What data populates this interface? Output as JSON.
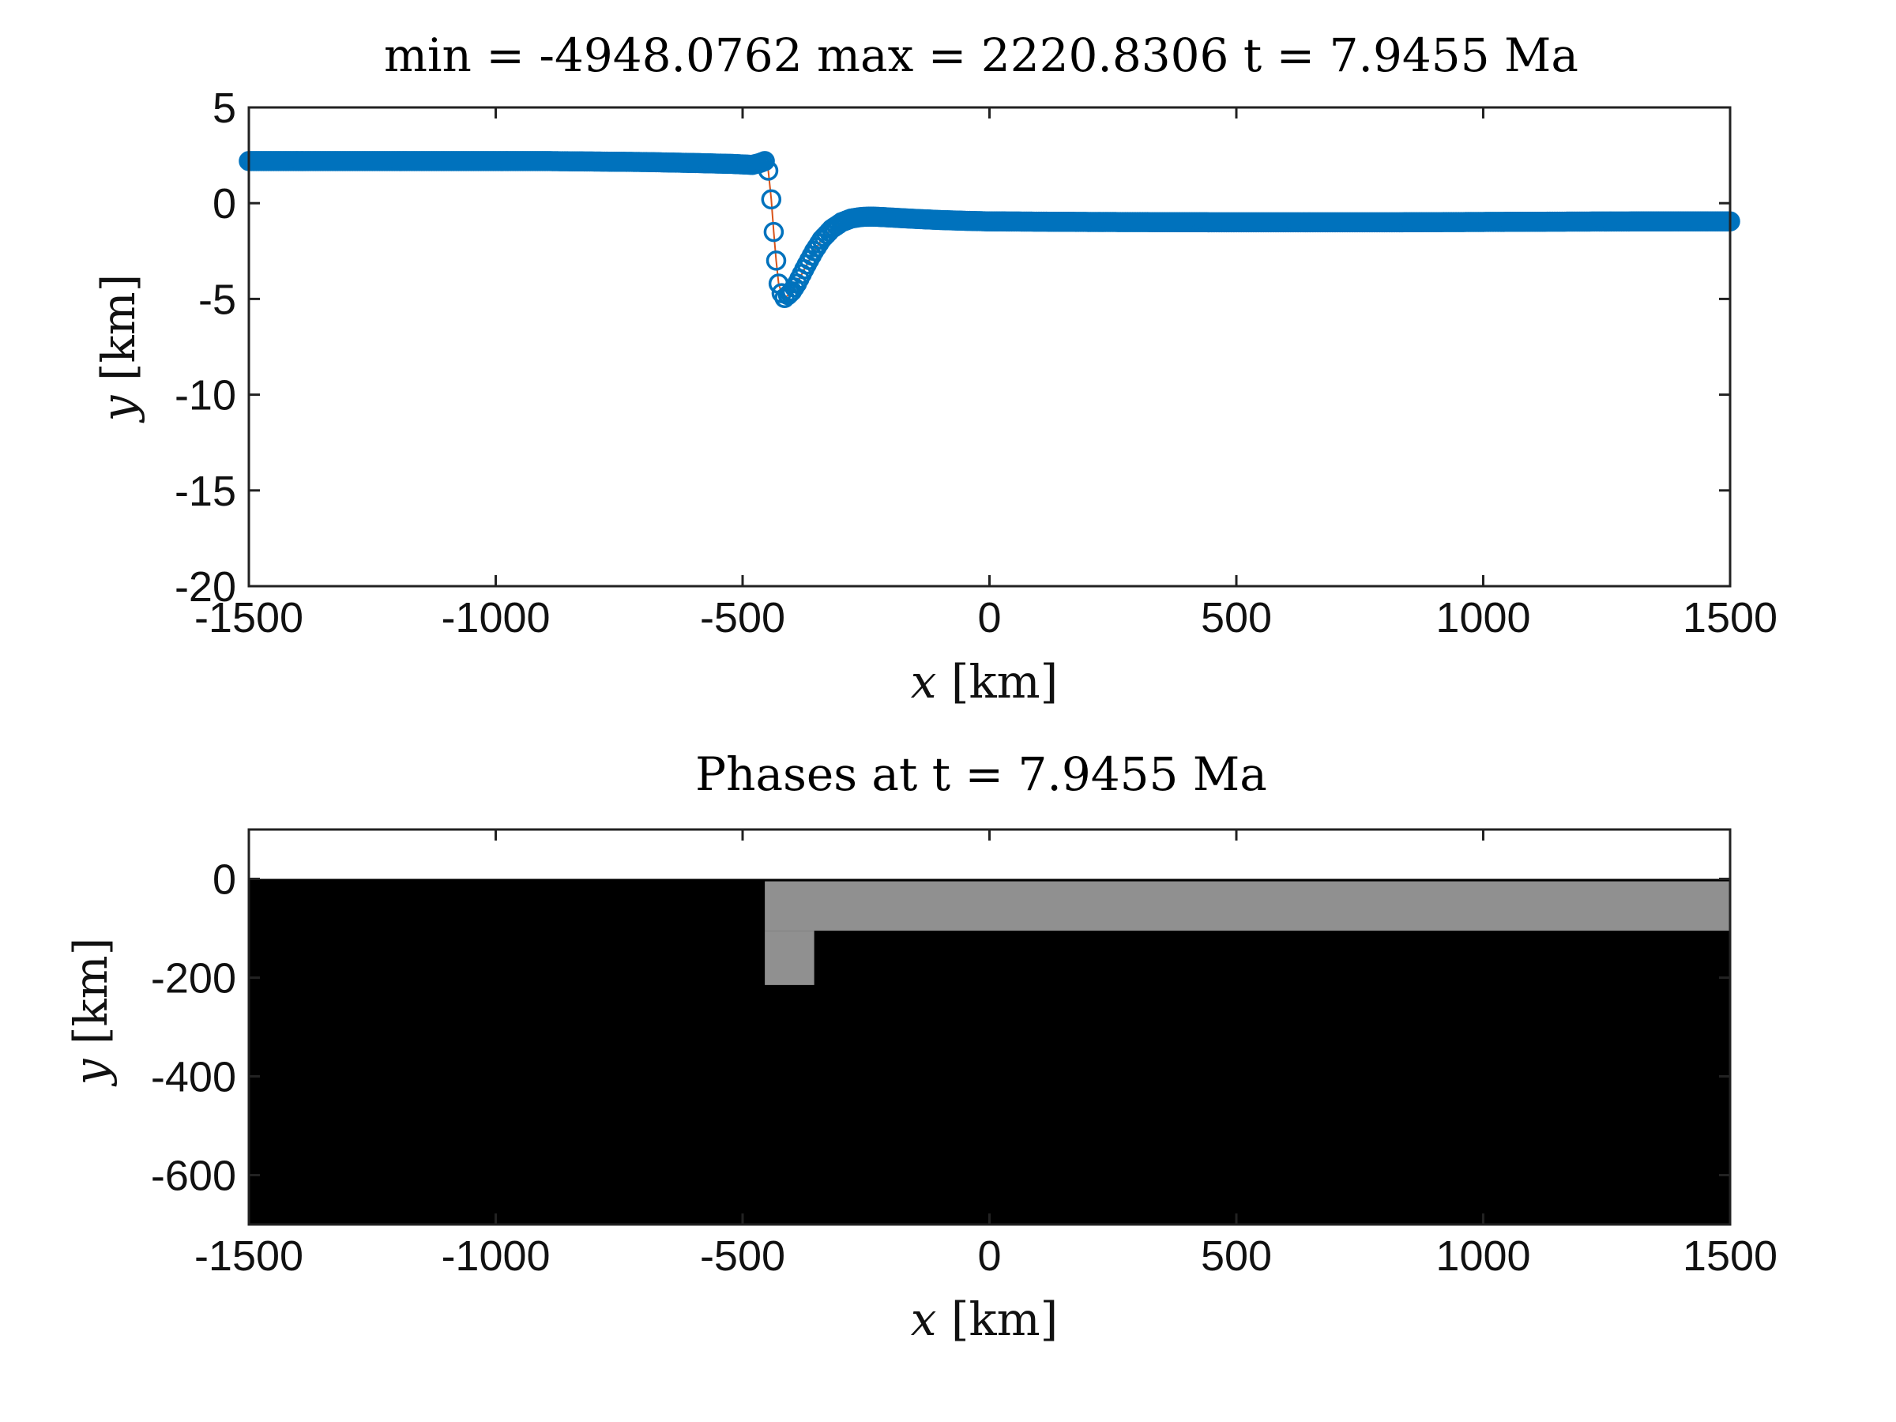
{
  "chart_data": [
    {
      "type": "line",
      "title": "min = -4948.0762 max = 2220.8306 t = 7.9455 Ma",
      "xlabel_var": "x",
      "xlabel_unit": "[km]",
      "ylabel_var": "y",
      "ylabel_unit": "[km]",
      "xlim": [
        -1500,
        1500
      ],
      "ylim": [
        -20,
        5
      ],
      "x_ticks": [
        -1500,
        -1000,
        -500,
        0,
        500,
        1000,
        1500
      ],
      "y_ticks": [
        5,
        0,
        -5,
        -10,
        -15,
        -20
      ],
      "x_tick_labels": [
        "-1500",
        "-1000",
        "-500",
        "0",
        "500",
        "1000",
        "1500"
      ],
      "y_tick_labels": [
        "5",
        "0",
        "-5",
        "-10",
        "-15",
        "-20"
      ],
      "grid": false,
      "series": [
        {
          "marker": "circle",
          "color": "#0072BD",
          "line_color": "#D95319",
          "x": [
            -1500,
            -1200,
            -900,
            -700,
            -600,
            -520,
            -480,
            -465,
            -455,
            -448,
            -442,
            -437,
            -432,
            -427,
            -421,
            -415,
            -408,
            -400,
            -390,
            -380,
            -370,
            -355,
            -340,
            -320,
            -300,
            -280,
            -260,
            -240,
            -220,
            -200,
            -150,
            -100,
            -50,
            0,
            200,
            500,
            800,
            1000,
            1200,
            1400,
            1500
          ],
          "y": [
            2.2,
            2.2,
            2.2,
            2.15,
            2.1,
            2.05,
            2.0,
            2.1,
            2.2,
            1.7,
            0.2,
            -1.5,
            -3.0,
            -4.2,
            -4.7,
            -4.95,
            -4.8,
            -4.6,
            -4.2,
            -3.7,
            -3.2,
            -2.5,
            -1.9,
            -1.35,
            -1.0,
            -0.8,
            -0.72,
            -0.7,
            -0.72,
            -0.75,
            -0.82,
            -0.88,
            -0.92,
            -0.95,
            -0.98,
            -1.0,
            -1.0,
            -0.98,
            -0.96,
            -0.95,
            -0.95
          ]
        }
      ]
    },
    {
      "type": "heatmap",
      "title": "Phases at t = 7.9455 Ma",
      "xlabel_var": "x",
      "xlabel_unit": "[km]",
      "ylabel_var": "y",
      "ylabel_unit": "[km]",
      "xlim": [
        -1500,
        1500
      ],
      "ylim": [
        -700,
        100
      ],
      "x_ticks": [
        -1500,
        -1000,
        -500,
        0,
        500,
        1000,
        1500
      ],
      "y_ticks": [
        0,
        -200,
        -400,
        -600
      ],
      "x_tick_labels": [
        "-1500",
        "-1000",
        "-500",
        "0",
        "500",
        "1000",
        "1500"
      ],
      "y_tick_labels": [
        "0",
        "-200",
        "-400",
        "-600"
      ],
      "grid": false,
      "phases": [
        {
          "color": "#000000",
          "x0": -1500,
          "x1": 1500,
          "y0": -700,
          "y1": 0
        },
        {
          "color": "#909090",
          "x0": -455,
          "x1": 1500,
          "y0": -105,
          "y1": -5
        },
        {
          "color": "#909090",
          "x0": -455,
          "x1": -355,
          "y0": -215,
          "y1": -105
        }
      ]
    }
  ]
}
